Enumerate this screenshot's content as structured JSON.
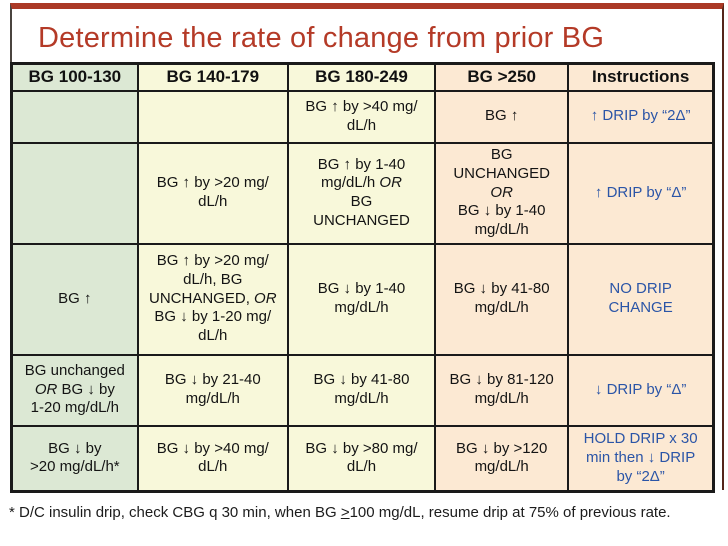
{
  "title": "Determine the rate of change from prior BG",
  "colors": {
    "title_red": "#b43a27",
    "accent_rule_red": "#ab3926",
    "instruction_blue": "#2b55a7",
    "grid_black": "#1a1a1a",
    "column_green": "#dce8d4",
    "column_cream": "#f8f8da",
    "column_peach": "#fce9d3"
  },
  "table": {
    "columns": [
      {
        "header": "BG 100-130",
        "bg": "#dce8d4"
      },
      {
        "header": "BG 140-179",
        "bg": "#f8f8da"
      },
      {
        "header": "BG 180-249",
        "bg": "#f8f8da"
      },
      {
        "header": "BG >250",
        "bg": "#fce9d3"
      },
      {
        "header": "Instructions",
        "bg": "#fce9d3"
      }
    ],
    "rows": [
      {
        "cells": [
          "",
          "",
          "BG ↑ by >40 mg/\ndL/h",
          "BG ↑",
          "↑ DRIP by “2Δ”"
        ]
      },
      {
        "cells": [
          "",
          "BG ↑ by >20 mg/\ndL/h",
          "BG ↑ by 1-40\nmg/dL/h OR\nBG\nUNCHANGED",
          "BG\nUNCHANGED\nOR\nBG ↓ by 1-40\nmg/dL/h",
          "↑ DRIP by “Δ”"
        ]
      },
      {
        "cells": [
          "BG ↑",
          "BG ↑ by >20 mg/\ndL/h, BG\nUNCHANGED, OR\nBG ↓ by 1-20 mg/\ndL/h",
          "BG ↓ by 1-40\nmg/dL/h",
          "BG ↓ by 41-80\nmg/dL/h",
          "NO DRIP\nCHANGE"
        ]
      },
      {
        "cells": [
          "BG unchanged\nOR BG ↓ by\n1-20 mg/dL/h",
          "BG ↓ by 21-40\nmg/dL/h",
          "BG ↓ by 41-80\nmg/dL/h",
          "BG ↓ by 81-120\nmg/dL/h",
          "↓ DRIP by “Δ”"
        ]
      },
      {
        "cells": [
          "BG ↓ by\n>20 mg/dL/h*",
          "BG ↓ by >40 mg/\ndL/h",
          "BG ↓ by >80 mg/\ndL/h",
          "BG ↓ by >120\nmg/dL/h",
          "HOLD DRIP x 30\nmin then ↓ DRIP\nby “2Δ”"
        ]
      }
    ]
  },
  "footnote": {
    "part1": "* D/C insulin drip, check CBG q 30 min, when BG ",
    "underlined": ">",
    "part3": "100 mg/dL, resume drip at 75% of previous rate."
  }
}
